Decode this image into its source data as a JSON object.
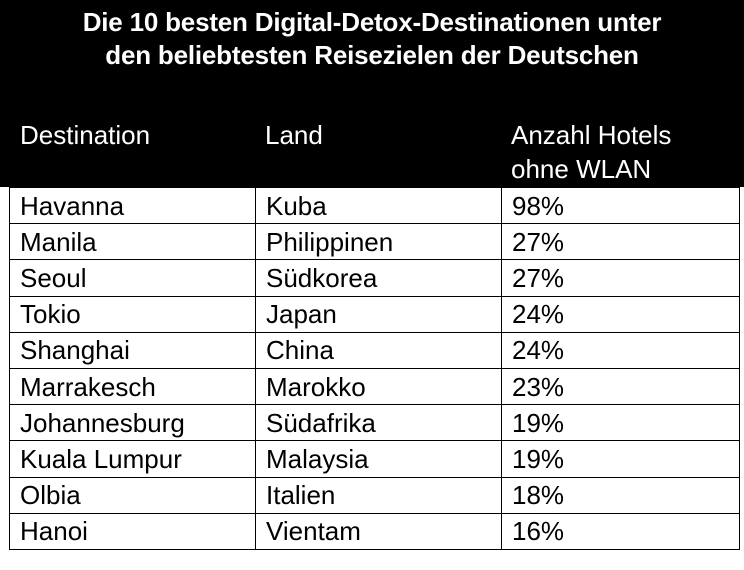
{
  "title": {
    "line1": "Die 10 besten Digital-Detox-Destinationen unter",
    "line2": "den beliebtesten Reisezielen der Deutschen"
  },
  "columns": {
    "destination": "Destination",
    "land": "Land",
    "hotels_line1": "Anzahl Hotels",
    "hotels_line2": "ohne WLAN"
  },
  "rows": [
    {
      "destination": "Havanna",
      "land": "Kuba",
      "share": "98%"
    },
    {
      "destination": "Manila",
      "land": "Philippinen",
      "share": "27%"
    },
    {
      "destination": "Seoul",
      "land": "Südkorea",
      "share": "27%"
    },
    {
      "destination": "Tokio",
      "land": "Japan",
      "share": "24%"
    },
    {
      "destination": "Shanghai",
      "land": "China",
      "share": "24%"
    },
    {
      "destination": "Marrakesch",
      "land": "Marokko",
      "share": "23%"
    },
    {
      "destination": "Johannesburg",
      "land": "Südafrika",
      "share": "19%"
    },
    {
      "destination": "Kuala Lumpur",
      "land": "Malaysia",
      "share": "19%"
    },
    {
      "destination": "Olbia",
      "land": "Italien",
      "share": "18%"
    },
    {
      "destination": "Hanoi",
      "land": "Vientam",
      "share": "16%"
    }
  ],
  "colors": {
    "header_bg": "#000000",
    "header_text": "#ffffff",
    "body_bg": "#ffffff",
    "body_text": "#000000"
  }
}
